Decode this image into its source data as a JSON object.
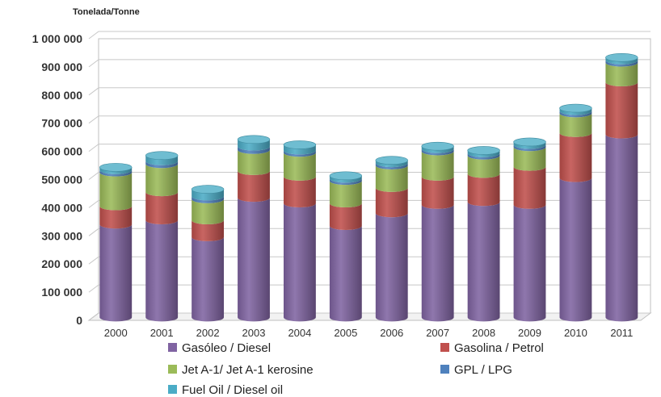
{
  "chart_data": {
    "type": "bar",
    "stacked": true,
    "style": "3d-cylinder",
    "unit_label": "Tonelada/Tonne",
    "ylim": [
      0,
      1000000
    ],
    "y_ticks": [
      0,
      100000,
      200000,
      300000,
      400000,
      500000,
      600000,
      700000,
      800000,
      900000,
      1000000
    ],
    "y_tick_labels": [
      "0",
      "100 000",
      "200 000",
      "300 000",
      "400 000",
      "500 000",
      "600 000",
      "700 000",
      "800 000",
      "900 000",
      "1 000 000"
    ],
    "grid": true,
    "legend_placement": "bottom",
    "categories": [
      "2000",
      "2001",
      "2002",
      "2003",
      "2004",
      "2005",
      "2006",
      "2007",
      "2008",
      "2009",
      "2010",
      "2011"
    ],
    "series": [
      {
        "name": "Gasóleo / Diesel",
        "color": "#8064A2",
        "values": [
          330000,
          345000,
          285000,
          425000,
          405000,
          325000,
          370000,
          400000,
          410000,
          400000,
          495000,
          650000
        ]
      },
      {
        "name": "Gasolina / Petrol",
        "color": "#C0504D",
        "values": [
          65000,
          100000,
          60000,
          95000,
          95000,
          80000,
          90000,
          100000,
          100000,
          135000,
          160000,
          185000
        ]
      },
      {
        "name": "Jet A-1/ Jet A-1 kerosine",
        "color": "#9BBB59",
        "values": [
          120000,
          100000,
          75000,
          75000,
          85000,
          80000,
          80000,
          90000,
          65000,
          70000,
          70000,
          70000
        ]
      },
      {
        "name": "GPL / LPG",
        "color": "#4F81BD",
        "values": [
          8000,
          10000,
          10000,
          12000,
          8000,
          8000,
          8000,
          8000,
          8000,
          8000,
          8000,
          8000
        ]
      },
      {
        "name": "Fuel Oil / Diesel oil",
        "color": "#4BACC6",
        "values": [
          10000,
          20000,
          25000,
          25000,
          20000,
          10000,
          10000,
          10000,
          10000,
          10000,
          10000,
          10000
        ]
      }
    ]
  }
}
